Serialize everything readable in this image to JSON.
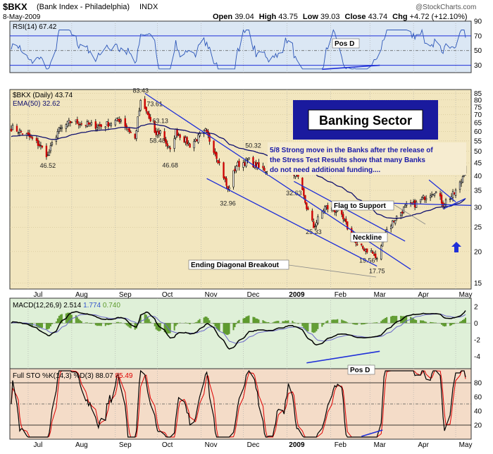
{
  "header": {
    "symbol": "$BKX",
    "name": "(Bank Index - Philadelphia)",
    "exchange": "INDX",
    "date": "8-May-2009",
    "open_label": "Open",
    "open": "39.04",
    "high_label": "High",
    "high": "43.75",
    "low_label": "Low",
    "low": "39.03",
    "close_label": "Close",
    "close": "43.74",
    "chg_label": "Chg",
    "chg": "+4.72 (+12.10%)",
    "watermark": "@StockCharts.com"
  },
  "colors": {
    "price_bg": "#f2e6bf",
    "rsi_bg": "#dbe7f4",
    "macd_bg": "#dff0d8",
    "sto_bg": "#f4dcc8",
    "candle_up": "#ffffff",
    "candle_down": "#cc0000",
    "ema": "#10106e",
    "trend": "#1f2fd8",
    "rsi_line": "#2b55b8",
    "hist": "#5d9a2d",
    "sto_k": "#000000",
    "sto_d": "#dd0000",
    "title_box": "#1a1a9e",
    "annot_text": "#1a1aa8"
  },
  "x_labels": [
    "Jul",
    "Aug",
    "Sep",
    "Oct",
    "Nov",
    "Dec",
    "2009",
    "Feb",
    "Mar",
    "Apr",
    "May"
  ],
  "annotations": {
    "banking_title": "Banking Sector",
    "note_lines": [
      "5/8  Strong move in the Banks after the release of",
      "the Stress Test Results show that many Banks",
      "do not need additional funding...."
    ],
    "flag_label": "Flag to Support",
    "neckline_label": "Neckline",
    "ending_label": "Ending Diagonal Breakout",
    "pos_d_rsi": "Pos D",
    "pos_d_sto": "Pos D"
  },
  "chart_data": [
    {
      "type": "line",
      "title": "RSI(14) 67.42",
      "series": [
        {
          "name": "RSI(14)",
          "last": 67.42
        }
      ],
      "ylim": [
        20,
        90
      ],
      "y_ticks": [
        30,
        50,
        70,
        90
      ],
      "reference_lines": [
        30,
        50,
        70
      ],
      "grid": true
    },
    {
      "type": "candlestick",
      "title": "$BKX (Daily) 43.74",
      "scale": "log",
      "ylim": [
        15,
        85
      ],
      "y_ticks": [
        15,
        20,
        25,
        30,
        35,
        40,
        45,
        50,
        55,
        60,
        65,
        70,
        75,
        80,
        85
      ],
      "series": [
        {
          "name": "$BKX (Daily)",
          "last": 43.74
        },
        {
          "name": "EMA(50)",
          "last": 32.62
        }
      ],
      "price_labels": [
        {
          "text": "46.52",
          "date": "2008-07-15",
          "value": 46.52
        },
        {
          "text": "83.43",
          "date": "2008-09-19",
          "value": 83.43
        },
        {
          "text": "73.61",
          "date": "2008-09-29",
          "value": 73.61
        },
        {
          "text": "63.13",
          "date": "2008-10-03",
          "value": 63.13
        },
        {
          "text": "58.48",
          "date": "2008-10-01",
          "value": 58.48
        },
        {
          "text": "46.68",
          "date": "2008-10-10",
          "value": 46.68
        },
        {
          "text": "50.32",
          "date": "2008-12-08",
          "value": 50.32
        },
        {
          "text": "32.96",
          "date": "2008-11-20",
          "value": 32.96
        },
        {
          "text": "32.63",
          "date": "2009-01-06",
          "value": 32.63
        },
        {
          "text": "25.33",
          "date": "2009-01-20",
          "value": 25.33
        },
        {
          "text": "19.56",
          "date": "2009-02-27",
          "value": 19.56
        },
        {
          "text": "17.75",
          "date": "2009-03-06",
          "value": 17.75
        }
      ],
      "anchors": [
        {
          "date": "2008-06-20",
          "close": 62
        },
        {
          "date": "2008-06-30",
          "close": 58
        },
        {
          "date": "2008-07-09",
          "close": 53
        },
        {
          "date": "2008-07-15",
          "close": 48
        },
        {
          "date": "2008-07-22",
          "close": 60
        },
        {
          "date": "2008-08-01",
          "close": 66
        },
        {
          "date": "2008-08-11",
          "close": 64
        },
        {
          "date": "2008-08-22",
          "close": 63
        },
        {
          "date": "2008-09-05",
          "close": 67
        },
        {
          "date": "2008-09-15",
          "close": 56
        },
        {
          "date": "2008-09-19",
          "close": 78
        },
        {
          "date": "2008-09-24",
          "close": 70
        },
        {
          "date": "2008-09-29",
          "close": 58
        },
        {
          "date": "2008-10-03",
          "close": 60
        },
        {
          "date": "2008-10-10",
          "close": 50
        },
        {
          "date": "2008-10-14",
          "close": 60
        },
        {
          "date": "2008-10-24",
          "close": 53
        },
        {
          "date": "2008-11-04",
          "close": 60
        },
        {
          "date": "2008-11-12",
          "close": 48
        },
        {
          "date": "2008-11-20",
          "close": 35
        },
        {
          "date": "2008-11-26",
          "close": 44
        },
        {
          "date": "2008-12-05",
          "close": 46
        },
        {
          "date": "2008-12-12",
          "close": 43
        },
        {
          "date": "2008-12-19",
          "close": 42
        },
        {
          "date": "2009-01-02",
          "close": 44
        },
        {
          "date": "2009-01-08",
          "close": 40
        },
        {
          "date": "2009-01-15",
          "close": 30
        },
        {
          "date": "2009-01-20",
          "close": 25
        },
        {
          "date": "2009-01-28",
          "close": 30
        },
        {
          "date": "2009-02-06",
          "close": 29
        },
        {
          "date": "2009-02-13",
          "close": 25
        },
        {
          "date": "2009-02-20",
          "close": 21
        },
        {
          "date": "2009-03-02",
          "close": 20
        },
        {
          "date": "2009-03-06",
          "close": 18.5
        },
        {
          "date": "2009-03-12",
          "close": 24
        },
        {
          "date": "2009-03-19",
          "close": 27
        },
        {
          "date": "2009-03-26",
          "close": 30
        },
        {
          "date": "2009-04-03",
          "close": 31
        },
        {
          "date": "2009-04-09",
          "close": 33
        },
        {
          "date": "2009-04-16",
          "close": 35
        },
        {
          "date": "2009-04-22",
          "close": 31
        },
        {
          "date": "2009-04-30",
          "close": 34
        },
        {
          "date": "2009-05-05",
          "close": 38
        },
        {
          "date": "2009-05-08",
          "close": 43.74
        }
      ]
    },
    {
      "type": "line",
      "title": "MACD(12,26,9)",
      "series": [
        {
          "name": "MACD",
          "last": 2.514
        },
        {
          "name": "Signal",
          "last": 1.774
        },
        {
          "name": "Histogram",
          "last": 0.74
        }
      ],
      "y_ticks": [
        2,
        0,
        -2,
        -4
      ],
      "ylim": [
        -5.5,
        3
      ]
    },
    {
      "type": "line",
      "title": "Full STO %K(14,3) %D(3)",
      "series": [
        {
          "name": "%K",
          "last": 88.07
        },
        {
          "name": "%D",
          "last": 85.49
        }
      ],
      "ylim": [
        0,
        100
      ],
      "y_ticks": [
        20,
        40,
        60,
        80
      ],
      "reference_lines": [
        20,
        50,
        80
      ]
    }
  ],
  "panel_titles": {
    "rsi": "RSI(14) 67.42",
    "price": "$BKX (Daily) 43.74",
    "ema": "EMA(50) 32.62",
    "macd_name": "MACD(12,26,9)",
    "macd_v1": "2.514",
    "macd_v2": "1.774",
    "macd_v3": "0.740",
    "sto_name": "Full STO %K(14,3) %D(3)",
    "sto_v1": "88.07",
    "sto_v2": "85.49"
  }
}
